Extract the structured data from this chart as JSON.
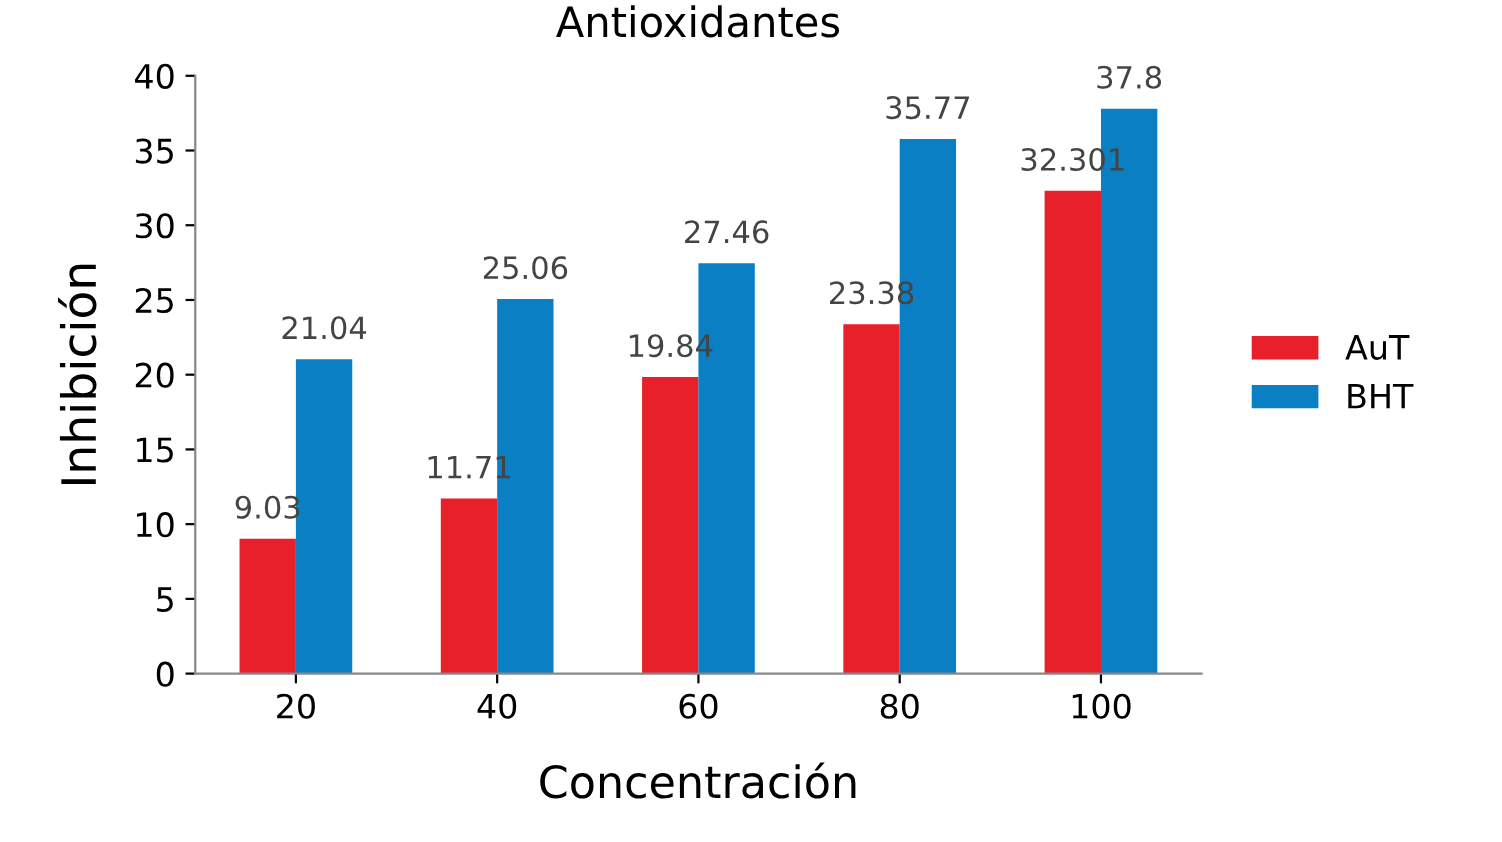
{
  "chart_data": {
    "type": "bar",
    "title": "Antioxidantes",
    "xlabel": "Concentración",
    "ylabel": "Inhibición",
    "categories": [
      "20",
      "40",
      "60",
      "80",
      "100"
    ],
    "series": [
      {
        "name": "AuT",
        "color": "#e8202a",
        "values": [
          9.03,
          11.71,
          19.84,
          23.38,
          32.301
        ]
      },
      {
        "name": "BHT",
        "color": "#0a7fc4",
        "values": [
          21.04,
          25.06,
          27.46,
          35.77,
          37.8
        ]
      }
    ],
    "ylim": [
      0,
      40
    ],
    "yticks": [
      0,
      5,
      10,
      15,
      20,
      25,
      30,
      35,
      40
    ],
    "grid": false,
    "legend": "right",
    "data_labels": true
  }
}
